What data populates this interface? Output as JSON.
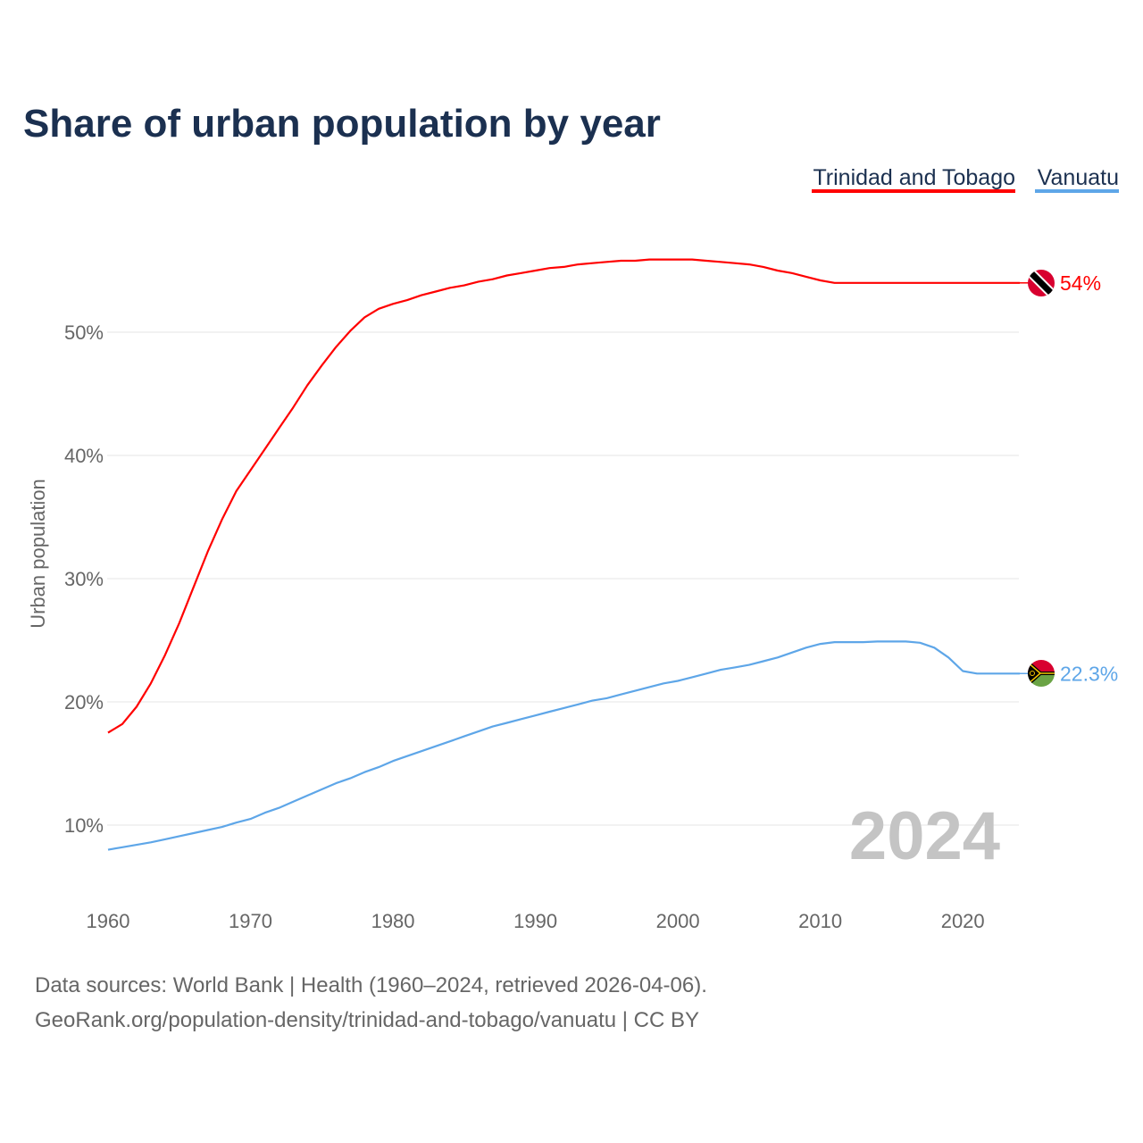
{
  "chart_data": {
    "type": "line",
    "title": "Share of urban population by year",
    "ylabel": "Urban population",
    "xlabel": "",
    "xlim": [
      1960,
      2024
    ],
    "ylim": [
      5,
      60
    ],
    "yticks": [
      10,
      20,
      30,
      40,
      50
    ],
    "ytick_labels": [
      "10%",
      "20%",
      "30%",
      "40%",
      "50%"
    ],
    "xticks": [
      1960,
      1970,
      1980,
      1990,
      2000,
      2010,
      2020
    ],
    "xtick_labels": [
      "1960",
      "1970",
      "1980",
      "1990",
      "2000",
      "2010",
      "2020"
    ],
    "grid": "horizontal",
    "legend_position": "top-right",
    "year_watermark": "2024",
    "x_start": 1960,
    "series": [
      {
        "name": "Trinidad and Tobago",
        "color": "#ff0000",
        "end_label": "54%",
        "flag": "trinidad-and-tobago-flag",
        "values": [
          17.5,
          18.2,
          19.6,
          21.5,
          23.8,
          26.4,
          29.3,
          32.2,
          34.8,
          37.1,
          38.8,
          40.5,
          42.2,
          43.9,
          45.7,
          47.3,
          48.8,
          50.1,
          51.2,
          51.9,
          52.3,
          52.6,
          53.0,
          53.3,
          53.6,
          53.8,
          54.1,
          54.3,
          54.6,
          54.8,
          55.0,
          55.2,
          55.3,
          55.5,
          55.6,
          55.7,
          55.8,
          55.8,
          55.9,
          55.9,
          55.9,
          55.9,
          55.8,
          55.7,
          55.6,
          55.5,
          55.3,
          55.0,
          54.8,
          54.5,
          54.2,
          54.0,
          54.0,
          54.0,
          54.0,
          54.0,
          54.0,
          54.0,
          54.0,
          54.0,
          54.0,
          54.0,
          54.0,
          54.0,
          54.0
        ]
      },
      {
        "name": "Vanuatu",
        "color": "#5ea6e8",
        "end_label": "22.3%",
        "flag": "vanuatu-flag",
        "values": [
          8.0,
          8.2,
          8.4,
          8.6,
          8.85,
          9.1,
          9.35,
          9.6,
          9.85,
          10.2,
          10.5,
          11.0,
          11.4,
          11.9,
          12.4,
          12.9,
          13.4,
          13.8,
          14.3,
          14.7,
          15.2,
          15.6,
          16.0,
          16.4,
          16.8,
          17.2,
          17.6,
          18.0,
          18.3,
          18.6,
          18.9,
          19.2,
          19.5,
          19.8,
          20.1,
          20.3,
          20.6,
          20.9,
          21.2,
          21.5,
          21.7,
          22.0,
          22.3,
          22.6,
          22.8,
          23.0,
          23.3,
          23.6,
          24.0,
          24.4,
          24.7,
          24.85,
          24.85,
          24.85,
          24.9,
          24.9,
          24.9,
          24.8,
          24.4,
          23.6,
          22.5,
          22.3,
          22.3,
          22.3,
          22.3
        ]
      }
    ]
  },
  "footer": {
    "line1": "Data sources: World Bank | Health (1960–2024, retrieved 2026-04-06).",
    "line2": "GeoRank.org/population-density/trinidad-and-tobago/vanuatu | CC BY"
  }
}
